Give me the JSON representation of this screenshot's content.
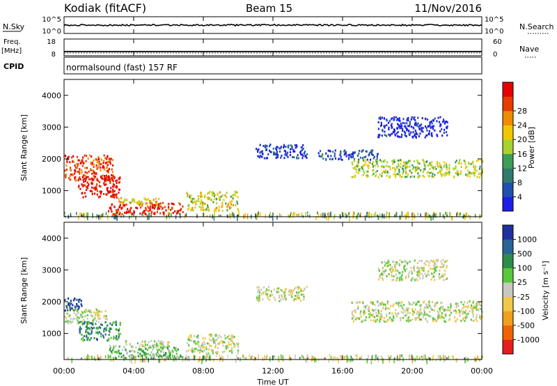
{
  "header": {
    "station": "Kodiak (fitACF)",
    "beam": "Beam 15",
    "date": "11/Nov/2016"
  },
  "side_labels": {
    "nsky": "N.Sky",
    "freq": "Freq.",
    "freq_unit": "[MHz]",
    "cpid": "CPID",
    "nsearch": "N.Search",
    "nave": "Nave"
  },
  "cpid_value": "normalsound (fast) 157 RF",
  "colors": {
    "power_scale": [
      "#1e1ee6",
      "#2050b0",
      "#2f7a6c",
      "#3c9c58",
      "#a8d232",
      "#f0c800",
      "#f08c00",
      "#e63c00",
      "#e60000"
    ],
    "velocity_scale": [
      "#e61e1e",
      "#f06400",
      "#f0a01e",
      "#f0c84a",
      "#c8c8c0",
      "#5ac83c",
      "#2e8c4c",
      "#2a6496",
      "#2030a0"
    ]
  },
  "chart_data": [
    {
      "type": "line",
      "name": "noise",
      "ylabel": "N.Sky",
      "yticks": [
        "10^5",
        "10^0"
      ],
      "right_yticks": [
        "10^5",
        "10^0"
      ],
      "right_label": "N.Search",
      "x_range_hours": [
        0,
        24
      ]
    },
    {
      "type": "line",
      "name": "frequency",
      "ylabel": "Freq. [MHz]",
      "yticks": [
        18,
        8
      ],
      "right_yticks": [
        60,
        0
      ],
      "right_label": "Nave",
      "x_range_hours": [
        0,
        24
      ]
    },
    {
      "type": "heatmap",
      "name": "power",
      "ylabel": "Slant Range [km]",
      "yticks": [
        1000,
        2000,
        3000,
        4000
      ],
      "ylim": [
        180,
        4500
      ],
      "colorbar_label": "Power [dB]",
      "colorbar_ticks": [
        4,
        8,
        12,
        16,
        20,
        24,
        28
      ],
      "x_range_hours": [
        0,
        24
      ],
      "regions": [
        {
          "t0": 0.0,
          "t1": 2.8,
          "r0": 1350,
          "r1": 2150,
          "level": 0.85
        },
        {
          "t0": 0.8,
          "t1": 3.2,
          "r0": 800,
          "r1": 1500,
          "level": 0.95
        },
        {
          "t0": 2.5,
          "t1": 6.8,
          "r0": 280,
          "r1": 650,
          "level": 0.9
        },
        {
          "t0": 3.0,
          "t1": 5.5,
          "r0": 550,
          "r1": 800,
          "level": 0.6
        },
        {
          "t0": 7.0,
          "t1": 10.0,
          "r0": 400,
          "r1": 1000,
          "level": 0.55
        },
        {
          "t0": 11.0,
          "t1": 14.0,
          "r0": 2050,
          "r1": 2500,
          "level": 0.1
        },
        {
          "t0": 14.5,
          "t1": 18.0,
          "r0": 2000,
          "r1": 2300,
          "level": 0.15
        },
        {
          "t0": 16.5,
          "t1": 24.0,
          "r0": 1450,
          "r1": 2000,
          "level": 0.5
        },
        {
          "t0": 18.0,
          "t1": 22.0,
          "r0": 2700,
          "r1": 3350,
          "level": 0.05
        }
      ]
    },
    {
      "type": "heatmap",
      "name": "velocity",
      "xlabel": "Time UT",
      "ylabel": "Slant Range [km]",
      "yticks": [
        1000,
        2000,
        3000,
        4000
      ],
      "ylim": [
        180,
        4500
      ],
      "x_ticks": [
        "00:00",
        "04:00",
        "08:00",
        "12:00",
        "16:00",
        "20:00",
        "00:00"
      ],
      "colorbar_label": "Velocity [m s⁻¹]",
      "colorbar_ticks": [
        -1000,
        -500,
        -100,
        -25,
        25,
        100,
        500,
        1000
      ],
      "x_range_hours": [
        0,
        24
      ],
      "regions": [
        {
          "t0": 0.0,
          "t1": 1.0,
          "r0": 1750,
          "r1": 2150,
          "level": 0.92
        },
        {
          "t0": 0.0,
          "t1": 2.5,
          "r0": 1350,
          "r1": 1800,
          "level": 0.5
        },
        {
          "t0": 0.8,
          "t1": 3.2,
          "r0": 800,
          "r1": 1400,
          "level": 0.75
        },
        {
          "t0": 2.5,
          "t1": 6.8,
          "r0": 250,
          "r1": 650,
          "level": 0.63
        },
        {
          "t0": 3.5,
          "t1": 6.0,
          "r0": 550,
          "r1": 800,
          "level": 0.5
        },
        {
          "t0": 7.0,
          "t1": 10.0,
          "r0": 400,
          "r1": 1000,
          "level": 0.5
        },
        {
          "t0": 11.0,
          "t1": 14.0,
          "r0": 2050,
          "r1": 2500,
          "level": 0.5
        },
        {
          "t0": 16.5,
          "t1": 24.0,
          "r0": 1400,
          "r1": 2050,
          "level": 0.5
        },
        {
          "t0": 18.0,
          "t1": 22.0,
          "r0": 2700,
          "r1": 3350,
          "level": 0.5
        }
      ]
    }
  ]
}
